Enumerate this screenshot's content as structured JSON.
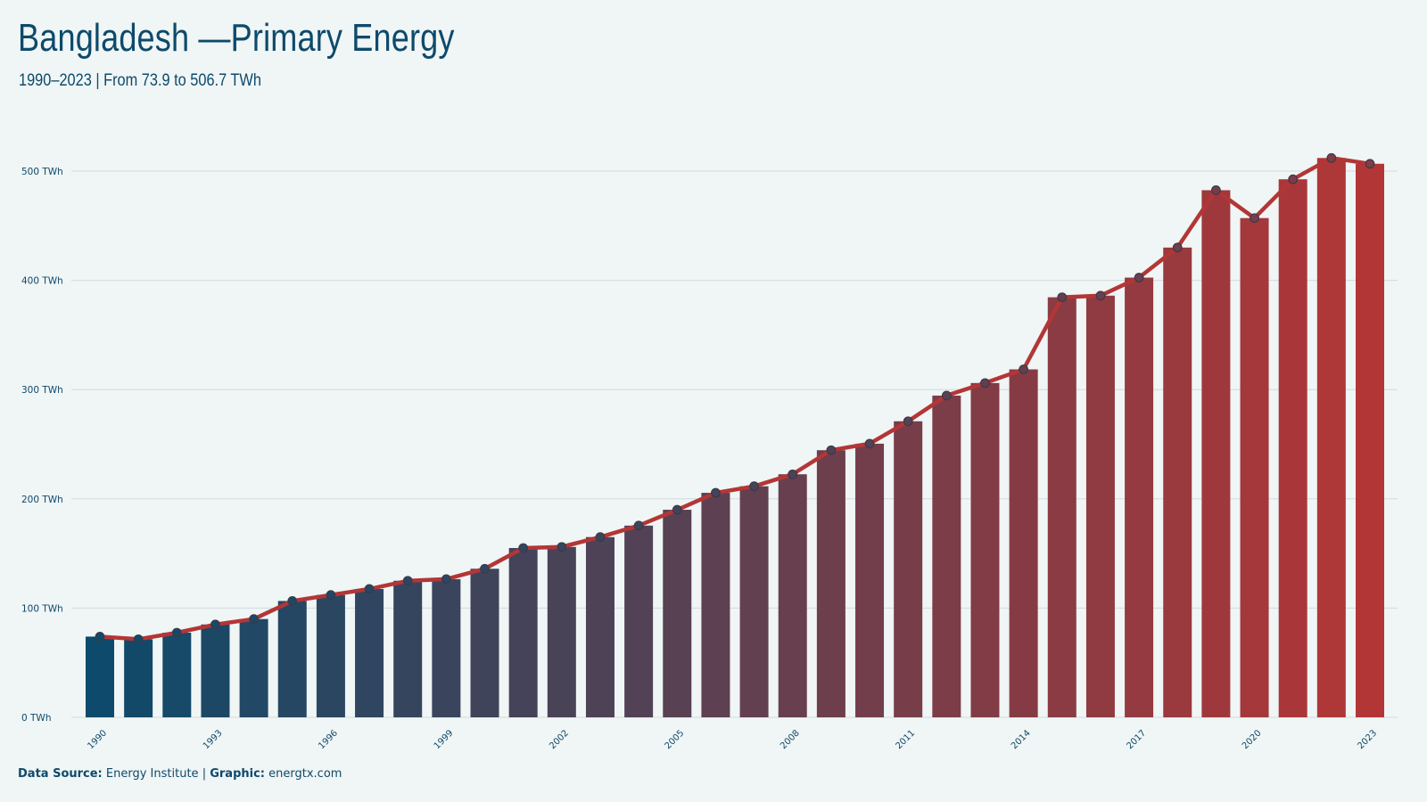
{
  "title": "Bangladesh  —Primary Energy",
  "subtitle": "1990–2023 | From 73.9 to 506.7  TWh",
  "footer": {
    "source_label": "Data Source:",
    "source_value": "Energy Institute",
    "separator": "|",
    "graphic_label": "Graphic:",
    "graphic_value": "energtx.com"
  },
  "colors": {
    "start": "#0d4a6b",
    "end": "#b33636",
    "line": "#b33636",
    "marker_stroke": "#3a3a4a",
    "grid": "#d3dadd",
    "background": "#f0f5f5",
    "text": "#0d4a6b"
  },
  "chart_data": {
    "type": "bar",
    "title": "Bangladesh  —Primary Energy",
    "subtitle": "1990–2023 | From 73.9 to 506.7  TWh",
    "xlabel": "",
    "ylabel": "",
    "unit": "TWh",
    "ylim": [
      0,
      525
    ],
    "yticks": [
      0,
      100,
      200,
      300,
      400,
      500
    ],
    "ytick_labels": [
      "0 TWh",
      "100 TWh",
      "200 TWh",
      "300 TWh",
      "400 TWh",
      "500 TWh"
    ],
    "grid": true,
    "overlay": "line-with-markers",
    "categories": [
      1990,
      1991,
      1992,
      1993,
      1994,
      1995,
      1996,
      1997,
      1998,
      1999,
      2000,
      2001,
      2002,
      2003,
      2004,
      2005,
      2006,
      2007,
      2008,
      2009,
      2010,
      2011,
      2012,
      2013,
      2014,
      2015,
      2016,
      2017,
      2018,
      2019,
      2020,
      2021,
      2022,
      2023
    ],
    "xtick_labels": [
      "1990",
      "1993",
      "1996",
      "1999",
      "2002",
      "2005",
      "2008",
      "2011",
      "2014",
      "2017",
      "2020",
      "2023"
    ],
    "values": [
      73.9,
      71.5,
      77.5,
      85.0,
      90.0,
      106.5,
      112.0,
      117.5,
      125.0,
      126.5,
      136.0,
      155.0,
      156.0,
      165.0,
      175.5,
      190.0,
      205.5,
      211.5,
      222.5,
      244.5,
      250.5,
      271.0,
      294.5,
      306.0,
      318.5,
      384.5,
      386.0,
      402.5,
      430.0,
      482.5,
      457.0,
      492.5,
      512.0,
      506.7
    ]
  }
}
